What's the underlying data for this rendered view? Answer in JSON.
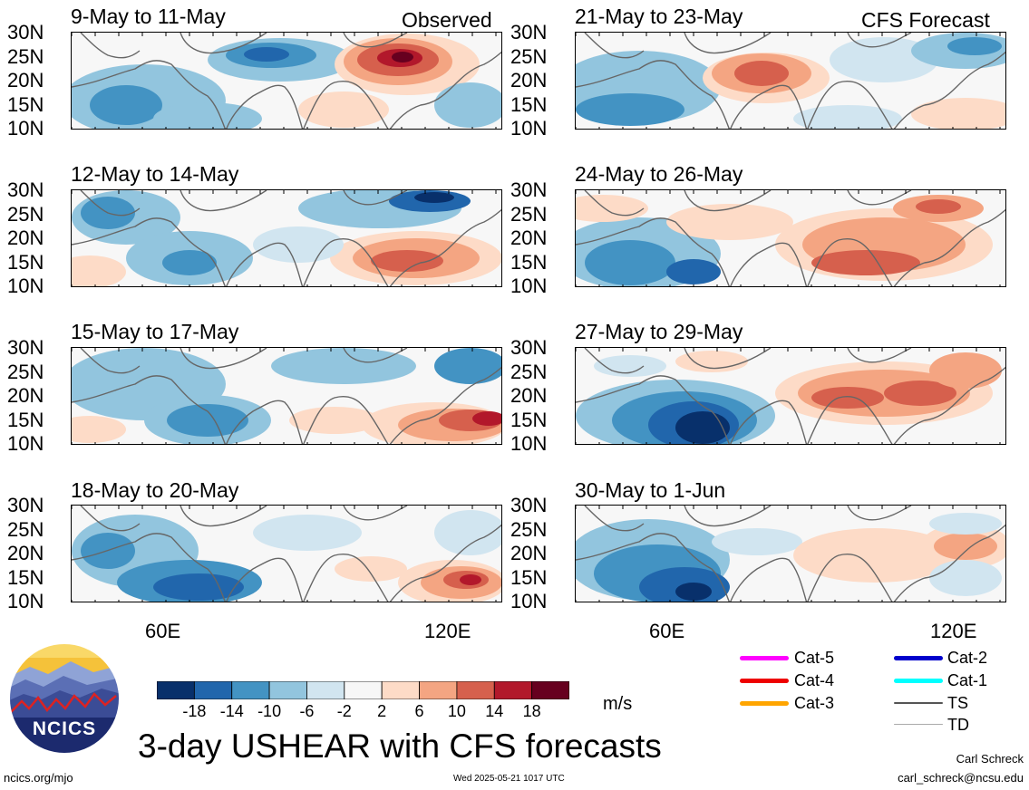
{
  "panels": [
    {
      "id": "p1",
      "title": "9-May to 11-May",
      "tag": "Observed"
    },
    {
      "id": "p2",
      "title": "21-May to 23-May",
      "tag": "CFS Forecast"
    },
    {
      "id": "p3",
      "title": "12-May to 14-May",
      "tag": ""
    },
    {
      "id": "p4",
      "title": "24-May to 26-May",
      "tag": ""
    },
    {
      "id": "p5",
      "title": "15-May to 17-May",
      "tag": ""
    },
    {
      "id": "p6",
      "title": "27-May to 29-May",
      "tag": ""
    },
    {
      "id": "p7",
      "title": "18-May to 20-May",
      "tag": ""
    },
    {
      "id": "p8",
      "title": "30-May to 1-Jun",
      "tag": ""
    }
  ],
  "lat_labels": [
    "30N",
    "25N",
    "20N",
    "15N",
    "10N"
  ],
  "lon_labels": [
    "60E",
    "120E"
  ],
  "colorbar": {
    "labels": [
      "-18",
      "-14",
      "-10",
      "-6",
      "-2",
      "2",
      "6",
      "10",
      "14",
      "18"
    ],
    "colors": [
      "#08306b",
      "#2166ac",
      "#4393c3",
      "#92c5de",
      "#d1e5f0",
      "#f7f7f7",
      "#fddbc7",
      "#f4a582",
      "#d6604d",
      "#b2182b",
      "#67001f"
    ],
    "units": "m/s"
  },
  "title": "3-day USHEAR with CFS forecasts",
  "logo_text": "NCICS",
  "legend": [
    {
      "label": "Cat-5",
      "color": "#ff00ff"
    },
    {
      "label": "Cat-4",
      "color": "#ee0000"
    },
    {
      "label": "Cat-3",
      "color": "#ffa500"
    },
    {
      "label": "Cat-2",
      "color": "#0000cc"
    },
    {
      "label": "Cat-1",
      "color": "#00ffff"
    },
    {
      "label": "TS",
      "color": "#555555"
    },
    {
      "label": "TD",
      "color": "#aaaaaa"
    }
  ],
  "footer": {
    "url": "ncics.org/mjo",
    "timestamp": "Wed 2025-05-21 1017 UTC",
    "author": "Carl Schreck",
    "email": "carl_schreck@ncsu.edu"
  }
}
